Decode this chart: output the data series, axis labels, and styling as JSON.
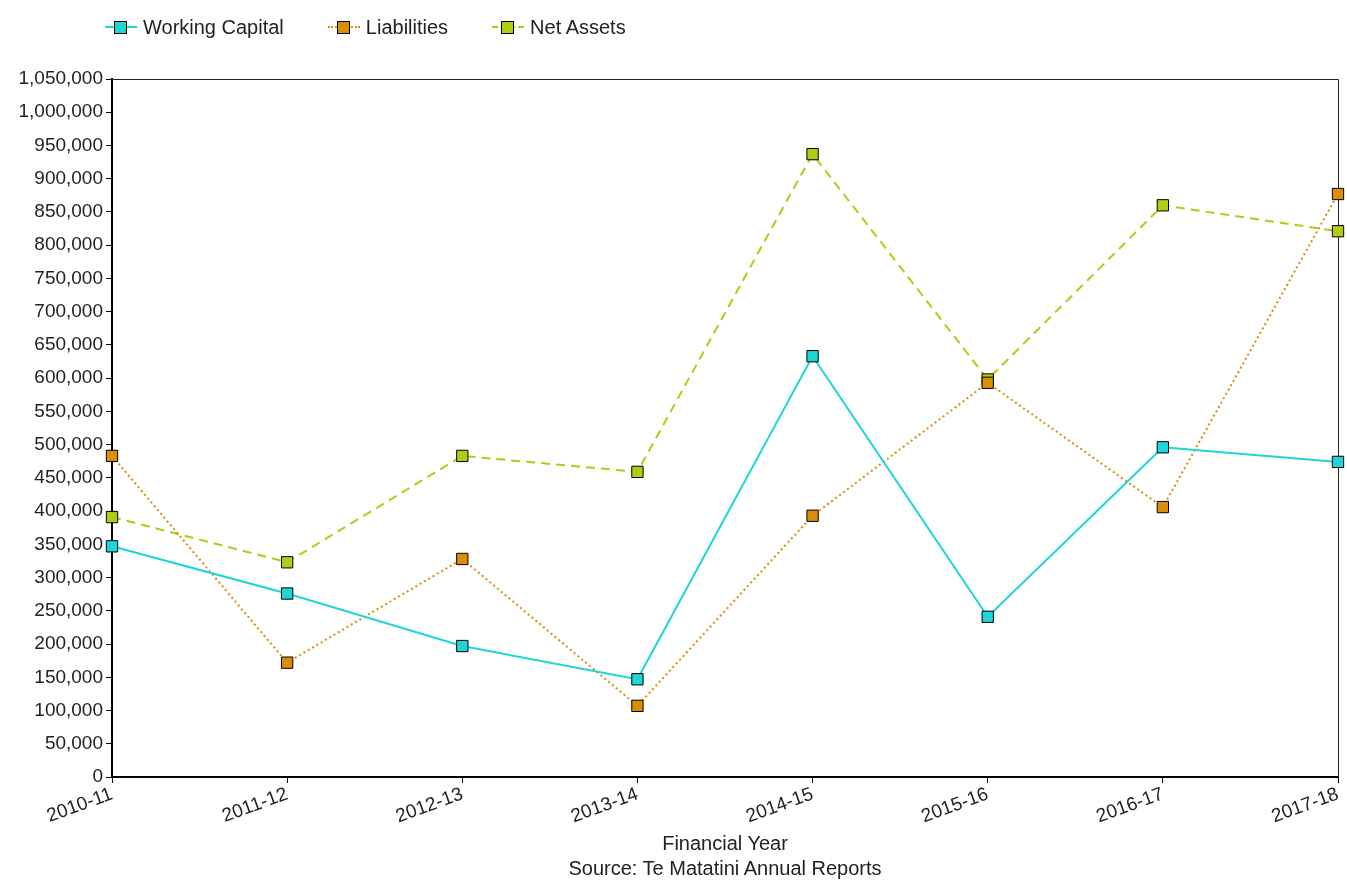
{
  "chart_data": {
    "type": "line",
    "xlabel": "Financial Year",
    "annotations": [
      "Source: Te Matatini Annual Reports"
    ],
    "categories": [
      "2010-11",
      "2011-12",
      "2012-13",
      "2013-14",
      "2014-15",
      "2015-16",
      "2016-17",
      "2017-18"
    ],
    "series": [
      {
        "name": "Working Capital",
        "color": "#1fd5d5",
        "line_style": "solid",
        "values": [
          347000,
          276000,
          197000,
          147000,
          633000,
          241000,
          496000,
          474000
        ]
      },
      {
        "name": "Liabilities",
        "color": "#d98e04",
        "line_style": "dotted",
        "values": [
          483000,
          172000,
          328000,
          107000,
          393000,
          593000,
          406000,
          877000
        ]
      },
      {
        "name": "Net Assets",
        "color": "#b4cb14",
        "line_style": "dashed",
        "values": [
          391000,
          323000,
          483000,
          459000,
          937000,
          598000,
          860000,
          821000
        ]
      }
    ],
    "ylim": [
      0,
      1050000
    ],
    "yticks": [
      0,
      {
        "value": 50000,
        "label": "50,000"
      },
      {
        "value": 100000,
        "label": "100,000"
      },
      {
        "value": 150000,
        "label": "150,000"
      },
      {
        "value": 200000,
        "label": "200,000"
      },
      {
        "value": 250000,
        "label": "250,000"
      },
      {
        "value": 300000,
        "label": "300,000"
      },
      {
        "value": 350000,
        "label": "350,000"
      },
      {
        "value": 400000,
        "label": "400,000"
      },
      {
        "value": 450000,
        "label": "450,000"
      },
      {
        "value": 500000,
        "label": "500,000"
      },
      {
        "value": 550000,
        "label": "550,000"
      },
      {
        "value": 600000,
        "label": "600,000"
      },
      {
        "value": 650000,
        "label": "650,000"
      },
      {
        "value": 700000,
        "label": "700,000"
      },
      {
        "value": 750000,
        "label": "750,000"
      },
      {
        "value": 800000,
        "label": "800,000"
      },
      {
        "value": 850000,
        "label": "850,000"
      },
      {
        "value": 900000,
        "label": "900,000"
      },
      {
        "value": 950000,
        "label": "950,000"
      },
      {
        "value": 1000000,
        "label": "1,000,000"
      },
      {
        "value": 1050000,
        "label": "1,050,000"
      }
    ],
    "legend": "top left",
    "marker": "square"
  }
}
